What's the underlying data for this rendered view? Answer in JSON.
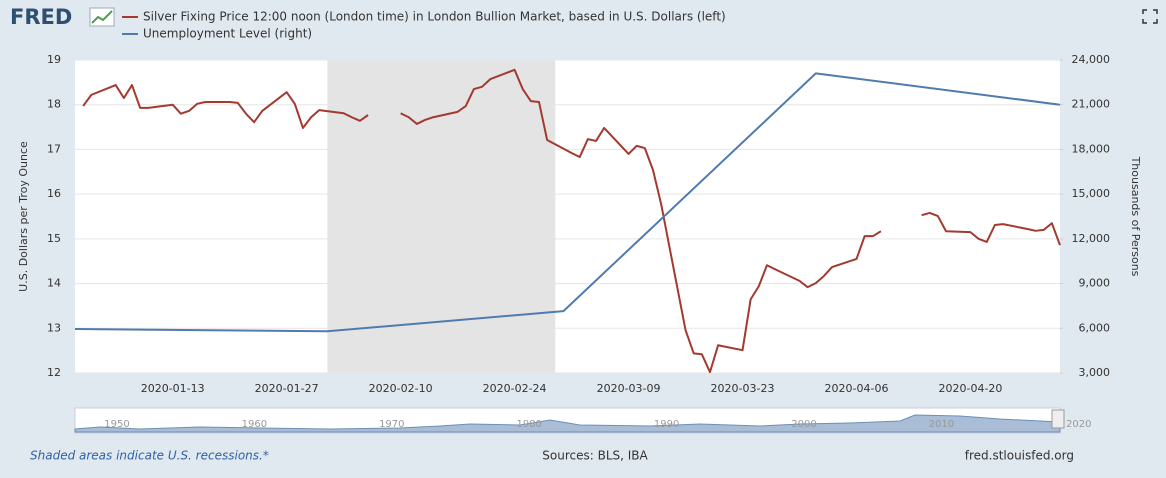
{
  "logo": "FRED",
  "chart_data": {
    "type": "line",
    "y_label": "U.S. Dollars per Troy Ounce",
    "y2_label": "Thousands of Persons",
    "xlim": [
      "2020-01-01",
      "2020-05-01"
    ],
    "xticks": [
      "2020-01-13",
      "2020-01-27",
      "2020-02-10",
      "2020-02-24",
      "2020-03-09",
      "2020-03-23",
      "2020-04-06",
      "2020-04-20"
    ],
    "ylim": [
      12,
      19
    ],
    "yticks": [
      12,
      13,
      14,
      15,
      16,
      17,
      18,
      19
    ],
    "y2lim": [
      3000,
      24000
    ],
    "y2ticks": [
      {
        "value": 3000,
        "label": "3,000"
      },
      {
        "value": 6000,
        "label": "6,000"
      },
      {
        "value": 9000,
        "label": "9,000"
      },
      {
        "value": 12000,
        "label": "12,000"
      },
      {
        "value": 15000,
        "label": "15,000"
      },
      {
        "value": 18000,
        "label": "18,000"
      },
      {
        "value": 21000,
        "label": "21,000"
      },
      {
        "value": 24000,
        "label": "24,000"
      }
    ],
    "grid": true,
    "recessions": [
      {
        "start": "2020-02-01",
        "end": "2020-02-29"
      }
    ],
    "series": [
      {
        "name": "Silver Fixing Price 12:00 noon (London time) in London Bullion Market, based in U.S. Dollars (left)",
        "color": "#a33a2f",
        "axis": "y",
        "x": [
          "2020-01-02",
          "2020-01-03",
          "2020-01-06",
          "2020-01-07",
          "2020-01-08",
          "2020-01-09",
          "2020-01-10",
          "2020-01-13",
          "2020-01-14",
          "2020-01-15",
          "2020-01-16",
          "2020-01-17",
          "2020-01-20",
          "2020-01-21",
          "2020-01-22",
          "2020-01-23",
          "2020-01-24",
          "2020-01-27",
          "2020-01-28",
          "2020-01-29",
          "2020-01-30",
          "2020-01-31",
          "2020-02-03",
          "2020-02-04",
          "2020-02-05",
          "2020-02-06",
          "2020-02-07",
          "2020-02-10",
          "2020-02-11",
          "2020-02-12",
          "2020-02-13",
          "2020-02-14",
          "2020-02-17",
          "2020-02-18",
          "2020-02-19",
          "2020-02-20",
          "2020-02-21",
          "2020-02-24",
          "2020-02-25",
          "2020-02-26",
          "2020-02-27",
          "2020-02-28",
          "2020-03-02",
          "2020-03-03",
          "2020-03-04",
          "2020-03-05",
          "2020-03-06",
          "2020-03-09",
          "2020-03-10",
          "2020-03-11",
          "2020-03-12",
          "2020-03-13",
          "2020-03-16",
          "2020-03-17",
          "2020-03-18",
          "2020-03-19",
          "2020-03-20",
          "2020-03-23",
          "2020-03-24",
          "2020-03-25",
          "2020-03-26",
          "2020-03-27",
          "2020-03-30",
          "2020-03-31",
          "2020-04-01",
          "2020-04-02",
          "2020-04-03",
          "2020-04-06",
          "2020-04-07",
          "2020-04-08",
          "2020-04-09",
          "2020-04-10",
          "2020-04-13",
          "2020-04-14",
          "2020-04-15",
          "2020-04-16",
          "2020-04-17",
          "2020-04-20",
          "2020-04-21",
          "2020-04-22",
          "2020-04-23",
          "2020-04-24",
          "2020-04-27",
          "2020-04-28",
          "2020-04-29",
          "2020-04-30",
          "2020-05-01"
        ],
        "values": [
          17.97,
          18.22,
          18.44,
          18.15,
          18.44,
          17.93,
          17.93,
          18.0,
          17.8,
          17.86,
          18.02,
          18.06,
          18.06,
          18.04,
          17.8,
          17.61,
          17.86,
          18.28,
          18.02,
          17.48,
          17.72,
          17.88,
          17.81,
          17.72,
          17.64,
          17.77,
          null,
          17.81,
          17.72,
          17.57,
          17.66,
          17.72,
          17.84,
          17.97,
          18.35,
          18.4,
          18.57,
          18.78,
          18.35,
          18.08,
          18.06,
          17.21,
          16.92,
          16.83,
          17.23,
          17.19,
          17.48,
          16.9,
          17.08,
          17.03,
          16.54,
          15.78,
          12.96,
          12.44,
          12.42,
          12.02,
          12.62,
          12.51,
          13.65,
          13.94,
          14.41,
          14.32,
          14.06,
          13.92,
          14.01,
          14.17,
          14.37,
          14.55,
          15.06,
          15.06,
          15.17,
          null,
          null,
          15.53,
          15.58,
          15.51,
          15.17,
          15.15,
          15.0,
          14.93,
          15.31,
          15.33,
          15.22,
          15.18,
          15.2,
          15.35,
          14.86
        ]
      },
      {
        "name": "Unemployment Level (right)",
        "color": "#4f7bb0",
        "axis": "y2",
        "x": [
          "2020-01-01",
          "2020-02-01",
          "2020-03-01",
          "2020-04-01",
          "2020-05-01"
        ],
        "values": [
          5950,
          5800,
          7150,
          23100,
          21000
        ]
      }
    ]
  },
  "navigator": {
    "labels": [
      "1950",
      "1960",
      "1970",
      "1980",
      "1990",
      "2000",
      "2010",
      "2020"
    ]
  },
  "footer": {
    "note": "Shaded areas indicate U.S. recessions.*",
    "sources": "Sources: BLS, IBA",
    "site": "fred.stlouisfed.org"
  }
}
